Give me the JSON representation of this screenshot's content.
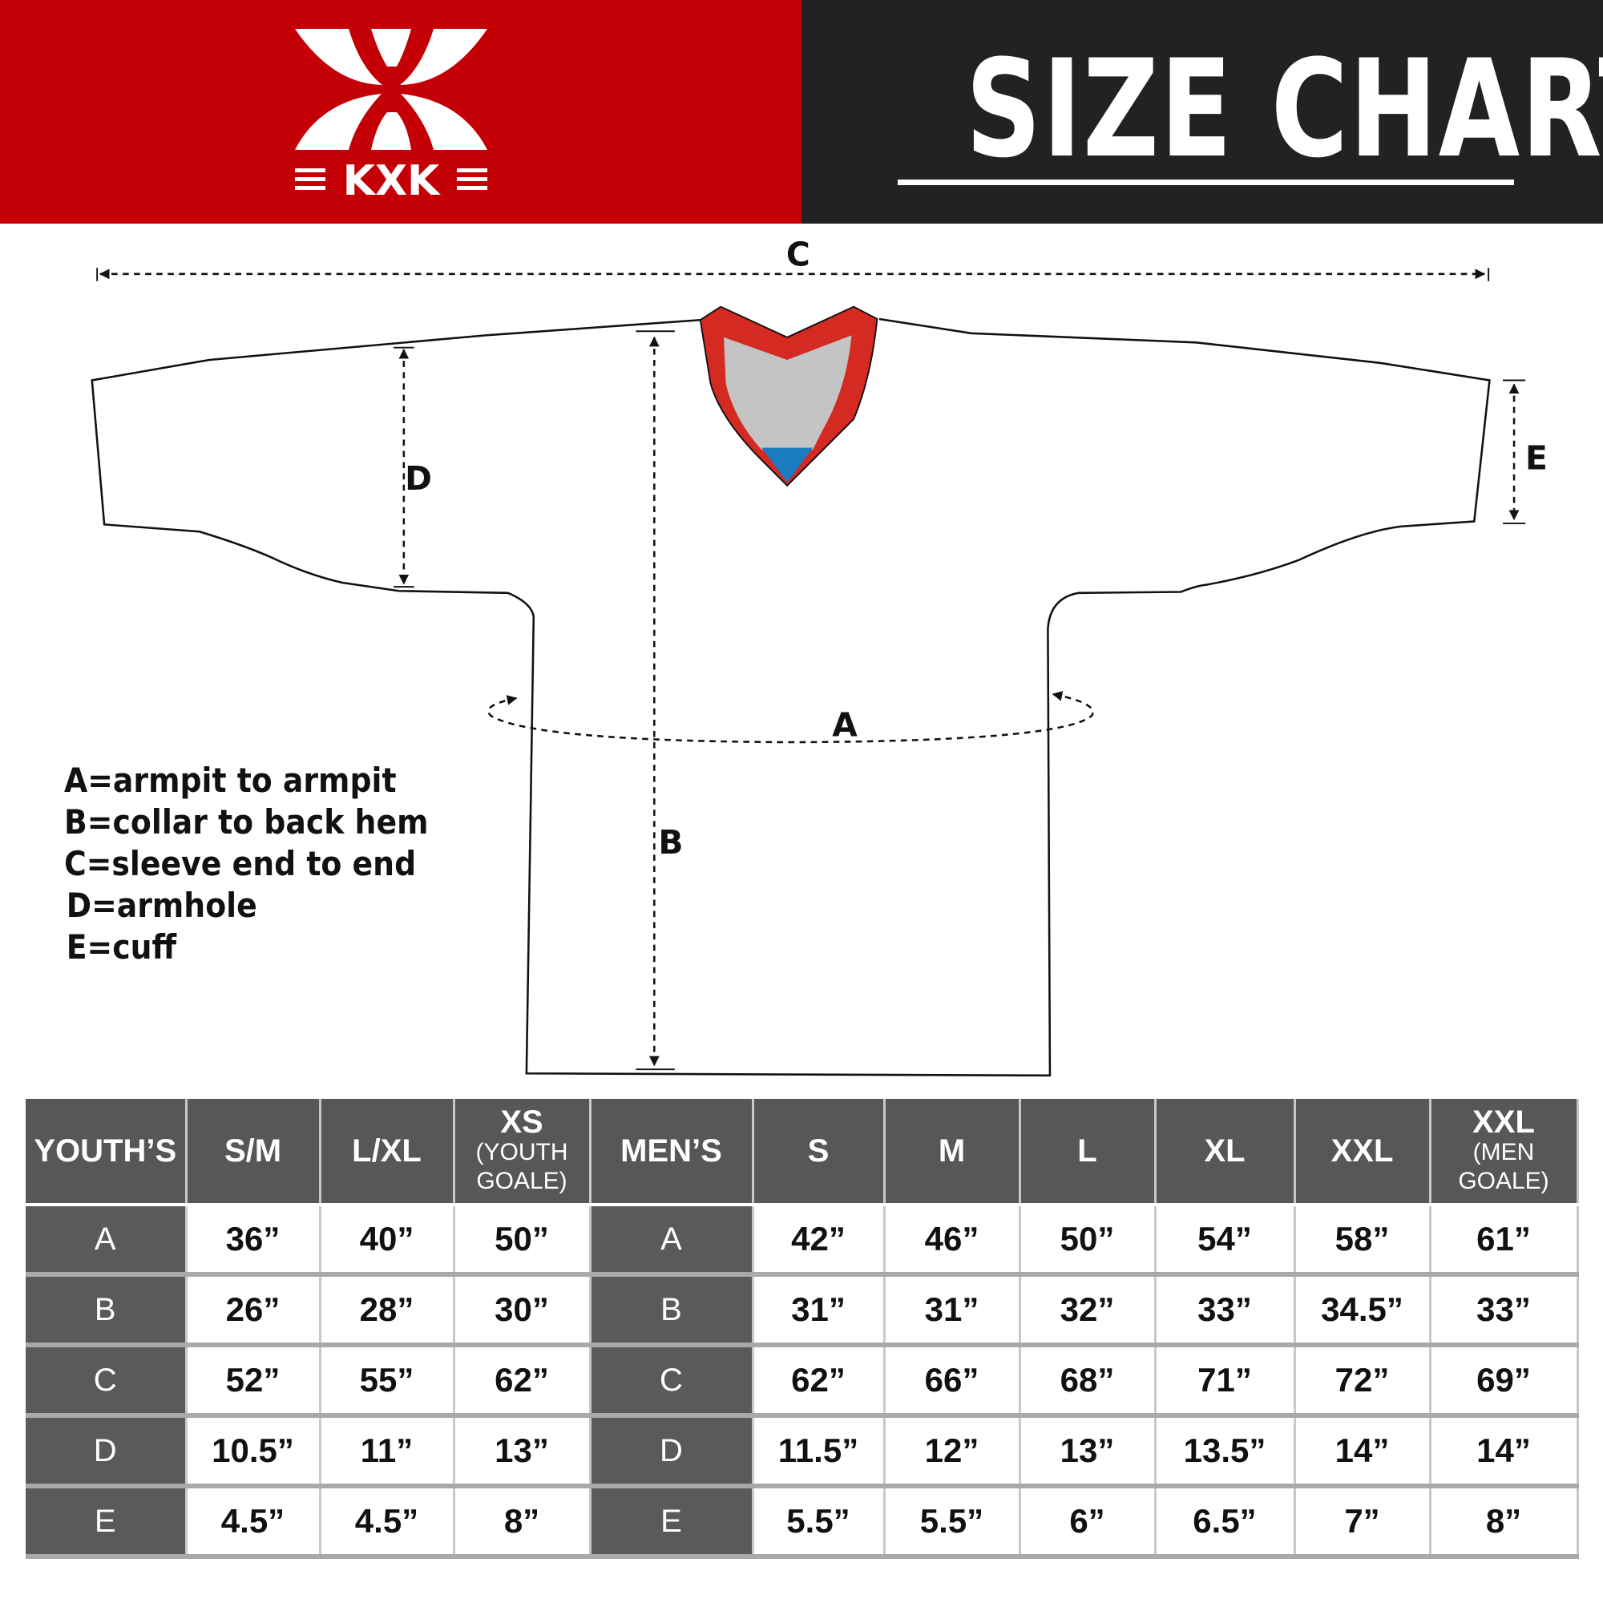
{
  "brand": {
    "logo_text": "KXK",
    "red": "#c40006",
    "dark": "#222222"
  },
  "header": {
    "title": "SIZE CHART"
  },
  "diagram": {
    "labels": {
      "a": "A",
      "b": "B",
      "c": "C",
      "d": "D",
      "e": "E"
    },
    "collar_colors": {
      "trim": "#d42a22",
      "inner": "#c4c4c4",
      "notch": "#1a7bc0"
    }
  },
  "legend": [
    "A=armpit to armpit",
    "B=collar to back hem",
    "C=sleeve end to end",
    "D=armhole",
    "E=cuff"
  ],
  "table": {
    "headers": [
      {
        "main": "YOUTH’S"
      },
      {
        "main": "S/M"
      },
      {
        "main": "L/XL"
      },
      {
        "main": "XS",
        "sub1": "(YOUTH",
        "sub2": "GOALE)"
      },
      {
        "main": "MEN’S"
      },
      {
        "main": "S"
      },
      {
        "main": "M"
      },
      {
        "main": "L"
      },
      {
        "main": "XL"
      },
      {
        "main": "XXL"
      },
      {
        "main": "XXL",
        "sub1": "(MEN",
        "sub2": "GOALE)"
      }
    ],
    "rows": [
      [
        "A",
        "36”",
        "40”",
        "50”",
        "A",
        "42”",
        "46”",
        "50”",
        "54”",
        "58”",
        "61”"
      ],
      [
        "B",
        "26”",
        "28”",
        "30”",
        "B",
        "31”",
        "31”",
        "32”",
        "33”",
        "34.5”",
        "33”"
      ],
      [
        "C",
        "52”",
        "55”",
        "62”",
        "C",
        "62”",
        "66”",
        "68”",
        "71”",
        "72”",
        "69”"
      ],
      [
        "D",
        "10.5”",
        "11”",
        "13”",
        "D",
        "11.5”",
        "12”",
        "13”",
        "13.5”",
        "14”",
        "14”"
      ],
      [
        "E",
        "4.5”",
        "4.5”",
        "8”",
        "E",
        "5.5”",
        "5.5”",
        "6”",
        "6.5”",
        "7”",
        "8”"
      ]
    ]
  }
}
